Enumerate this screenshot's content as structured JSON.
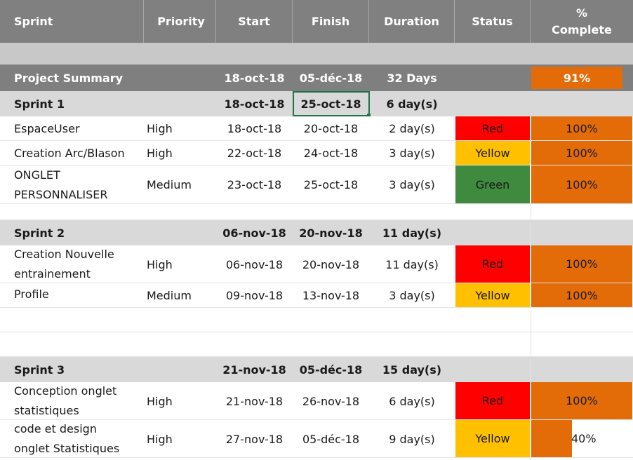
{
  "headers": {
    "task": "Sprint",
    "priority": "Priority",
    "start": "Start",
    "finish": "Finish",
    "duration": "Duration",
    "status": "Status",
    "complete_line1": "%",
    "complete_line2": "Complete"
  },
  "summary": {
    "label": "Project Summary",
    "start": "18-oct-18",
    "finish": "05-déc-18",
    "duration": "32 Days",
    "percent": "91%"
  },
  "sprints": [
    {
      "name": "Sprint 1",
      "start": "18-oct-18",
      "finish": "25-oct-18",
      "duration": "6 day(s)",
      "tasks": [
        {
          "name": "EspaceUser",
          "priority": "High",
          "start": "18-oct-18",
          "finish": "20-oct-18",
          "duration": "2 day(s)",
          "status": "Red",
          "percent": "100%",
          "progress": 1.0
        },
        {
          "name": "Creation Arc/Blason",
          "priority": "High",
          "start": "22-oct-18",
          "finish": "24-oct-18",
          "duration": "3 day(s)",
          "status": "Yellow",
          "percent": "100%",
          "progress": 1.0
        },
        {
          "name": "ONGLET PERSONNALISER",
          "priority": "Medium",
          "start": "23-oct-18",
          "finish": "25-oct-18",
          "duration": "3 day(s)",
          "status": "Green",
          "percent": "100%",
          "progress": 1.0
        }
      ]
    },
    {
      "name": "Sprint 2",
      "start": "06-nov-18",
      "finish": "20-nov-18",
      "duration": "11 day(s)",
      "tasks": [
        {
          "name": "Creation Nouvelle entrainement",
          "priority": "High",
          "start": "06-nov-18",
          "finish": "20-nov-18",
          "duration": "11 day(s)",
          "status": "Red",
          "percent": "100%",
          "progress": 1.0
        },
        {
          "name": "Profile",
          "priority": "Medium",
          "start": "09-nov-18",
          "finish": "13-nov-18",
          "duration": "3 day(s)",
          "status": "Yellow",
          "percent": "100%",
          "progress": 1.0
        }
      ]
    },
    {
      "name": "Sprint 3",
      "start": "21-nov-18",
      "finish": "05-déc-18",
      "duration": "15 day(s)",
      "tasks": [
        {
          "name": "Conception onglet statistiques",
          "priority": "High",
          "start": "21-nov-18",
          "finish": "26-nov-18",
          "duration": "6 day(s)",
          "status": "Red",
          "percent": "100%",
          "progress": 1.0
        },
        {
          "name": "code et design onglet Statistiques",
          "priority": "High",
          "start": "27-nov-18",
          "finish": "05-déc-18",
          "duration": "9 day(s)",
          "status": "Yellow",
          "percent": "40%",
          "progress": 0.4
        }
      ]
    }
  ],
  "colors": {
    "header_bg": "#808080",
    "summary_bg": "#7f7f7f",
    "sprint_bg": "#d9d9d9",
    "progress": "#e36c09",
    "status_red": "#ff0000",
    "status_yellow": "#ffc000",
    "status_green": "#3f8a3f",
    "selection": "#217346"
  }
}
